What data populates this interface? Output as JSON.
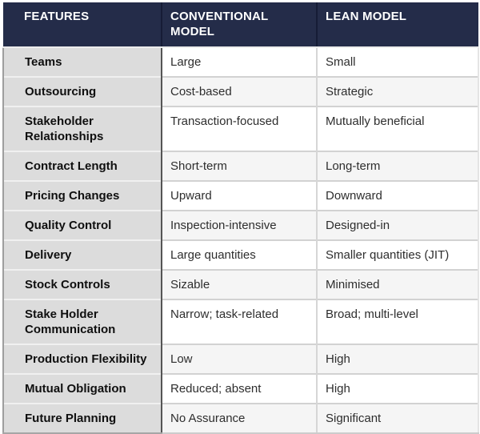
{
  "table": {
    "columns": [
      {
        "label": "FEATURES"
      },
      {
        "label": "CONVENTIONAL MODEL"
      },
      {
        "label": "LEAN MODEL"
      }
    ],
    "rows": [
      {
        "feature": "Teams",
        "conventional": "Large",
        "lean": "Small"
      },
      {
        "feature": "Outsourcing",
        "conventional": "Cost-based",
        "lean": "Strategic"
      },
      {
        "feature": "Stakeholder Relationships",
        "conventional": "Transaction-focused",
        "lean": "Mutually beneficial"
      },
      {
        "feature": "Contract Length",
        "conventional": "Short-term",
        "lean": "Long-term"
      },
      {
        "feature": "Pricing Changes",
        "conventional": "Upward",
        "lean": "Downward"
      },
      {
        "feature": "Quality Control",
        "conventional": "Inspection-intensive",
        "lean": "Designed-in"
      },
      {
        "feature": "Delivery",
        "conventional": "Large quantities",
        "lean": "Smaller quantities (JIT)"
      },
      {
        "feature": "Stock Controls",
        "conventional": "Sizable",
        "lean": "Minimised"
      },
      {
        "feature": "Stake Holder Communication",
        "conventional": "Narrow; task-related",
        "lean": "Broad; multi-level"
      },
      {
        "feature": "Production Flexibility",
        "conventional": "Low",
        "lean": "High"
      },
      {
        "feature": "Mutual Obligation",
        "conventional": "Reduced; absent",
        "lean": "High"
      },
      {
        "feature": "Future Planning",
        "conventional": "No Assurance",
        "lean": "Significant"
      }
    ],
    "colors": {
      "header_bg": "#242c49",
      "header_text": "#ffffff",
      "feature_column_bg": "#dcdcdc",
      "row_bg": "#ffffff",
      "row_alt_bg": "#f5f5f5",
      "dark_divider": "#555555",
      "light_divider": "#d6d6d6"
    }
  }
}
